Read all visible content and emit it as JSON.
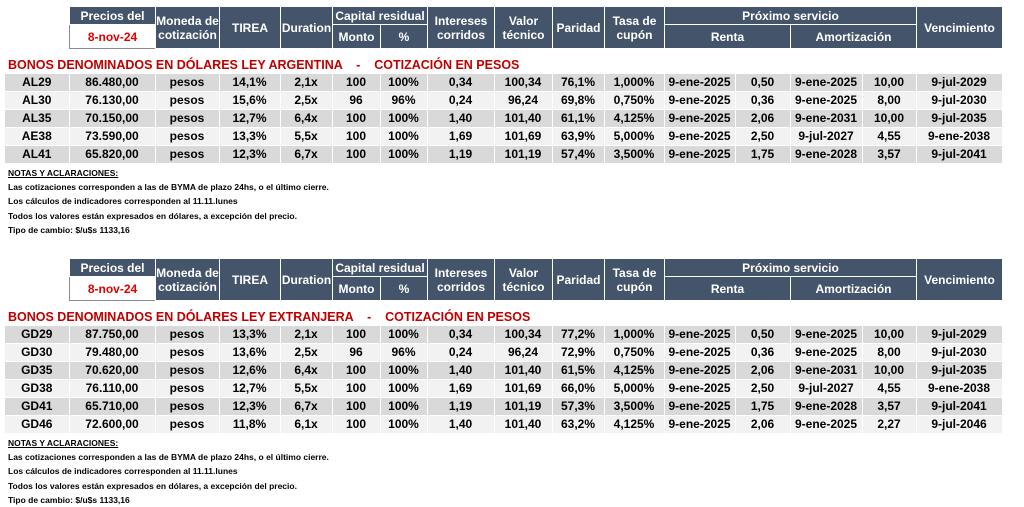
{
  "headers": {
    "precios_del": "Precios del",
    "fecha": "8-nov-24",
    "moneda": "Moneda de cotización",
    "tirea": "TIREA",
    "duration": "Duration",
    "capital_residual": "Capital residual",
    "monto": "Monto",
    "pct": "%",
    "intereses": "Intereses corridos",
    "valor_tecnico": "Valor técnico",
    "paridad": "Paridad",
    "tasa_cupon": "Tasa de cupón",
    "proximo_servicio": "Próximo servicio",
    "renta": "Renta",
    "amortizacion": "Amortización",
    "vencimiento": "Vencimiento"
  },
  "section1": {
    "title": "BONOS DENOMINADOS EN DÓLARES LEY ARGENTINA    -    COTIZACIÓN EN PESOS",
    "rows": [
      [
        "AL29",
        "86.480,00",
        "pesos",
        "14,1%",
        "2,1x",
        "100",
        "100%",
        "0,34",
        "100,34",
        "76,1%",
        "1,000%",
        "9-ene-2025",
        "0,50",
        "9-ene-2025",
        "10,00",
        "9-jul-2029"
      ],
      [
        "AL30",
        "76.130,00",
        "pesos",
        "15,6%",
        "2,5x",
        "96",
        "96%",
        "0,24",
        "96,24",
        "69,8%",
        "0,750%",
        "9-ene-2025",
        "0,36",
        "9-ene-2025",
        "8,00",
        "9-jul-2030"
      ],
      [
        "AL35",
        "70.150,00",
        "pesos",
        "12,7%",
        "6,4x",
        "100",
        "100%",
        "1,40",
        "101,40",
        "61,1%",
        "4,125%",
        "9-ene-2025",
        "2,06",
        "9-ene-2031",
        "10,00",
        "9-jul-2035"
      ],
      [
        "AE38",
        "73.590,00",
        "pesos",
        "13,3%",
        "5,5x",
        "100",
        "100%",
        "1,69",
        "101,69",
        "63,9%",
        "5,000%",
        "9-ene-2025",
        "2,50",
        "9-jul-2027",
        "4,55",
        "9-ene-2038"
      ],
      [
        "AL41",
        "65.820,00",
        "pesos",
        "12,3%",
        "6,7x",
        "100",
        "100%",
        "1,19",
        "101,19",
        "57,4%",
        "3,500%",
        "9-ene-2025",
        "1,75",
        "9-ene-2028",
        "3,57",
        "9-jul-2041"
      ]
    ],
    "notes_title": "NOTAS Y ACLARACIONES:",
    "notes": [
      "Las cotizaciones corresponden a las de BYMA de plazo 24hs, o el último cierre.",
      "Los cálculos de indicadores corresponden al 11.11.lunes",
      "Todos los valores están expresados en dólares, a excepción del precio.",
      "Tipo de cambio: $/u$s 1133,16"
    ]
  },
  "section2": {
    "title": "BONOS DENOMINADOS EN DÓLARES LEY EXTRANJERA    -    COTIZACIÓN EN PESOS",
    "rows": [
      [
        "GD29",
        "87.750,00",
        "pesos",
        "13,3%",
        "2,1x",
        "100",
        "100%",
        "0,34",
        "100,34",
        "77,2%",
        "1,000%",
        "9-ene-2025",
        "0,50",
        "9-ene-2025",
        "10,00",
        "9-jul-2029"
      ],
      [
        "GD30",
        "79.480,00",
        "pesos",
        "13,6%",
        "2,5x",
        "96",
        "96%",
        "0,24",
        "96,24",
        "72,9%",
        "0,750%",
        "9-ene-2025",
        "0,36",
        "9-ene-2025",
        "8,00",
        "9-jul-2030"
      ],
      [
        "GD35",
        "70.620,00",
        "pesos",
        "12,6%",
        "6,4x",
        "100",
        "100%",
        "1,40",
        "101,40",
        "61,5%",
        "4,125%",
        "9-ene-2025",
        "2,06",
        "9-ene-2031",
        "10,00",
        "9-jul-2035"
      ],
      [
        "GD38",
        "76.110,00",
        "pesos",
        "12,7%",
        "5,5x",
        "100",
        "100%",
        "1,69",
        "101,69",
        "66,0%",
        "5,000%",
        "9-ene-2025",
        "2,50",
        "9-jul-2027",
        "4,55",
        "9-ene-2038"
      ],
      [
        "GD41",
        "65.710,00",
        "pesos",
        "12,3%",
        "6,7x",
        "100",
        "100%",
        "1,19",
        "101,19",
        "57,3%",
        "3,500%",
        "9-ene-2025",
        "1,75",
        "9-ene-2028",
        "3,57",
        "9-jul-2041"
      ],
      [
        "GD46",
        "72.600,00",
        "pesos",
        "11,8%",
        "6,1x",
        "100",
        "100%",
        "1,40",
        "101,40",
        "63,2%",
        "4,125%",
        "9-ene-2025",
        "2,06",
        "9-ene-2025",
        "2,27",
        "9-jul-2046"
      ]
    ],
    "notes_title": "NOTAS Y ACLARACIONES:",
    "notes": [
      "Las cotizaciones corresponden a las de BYMA de plazo 24hs, o el último cierre.",
      "Los cálculos de indicadores corresponden al 11.11.lunes",
      "Todos los valores están expresados en dólares, a excepción del precio.",
      "Tipo de cambio: $/u$s 1133,16"
    ]
  }
}
